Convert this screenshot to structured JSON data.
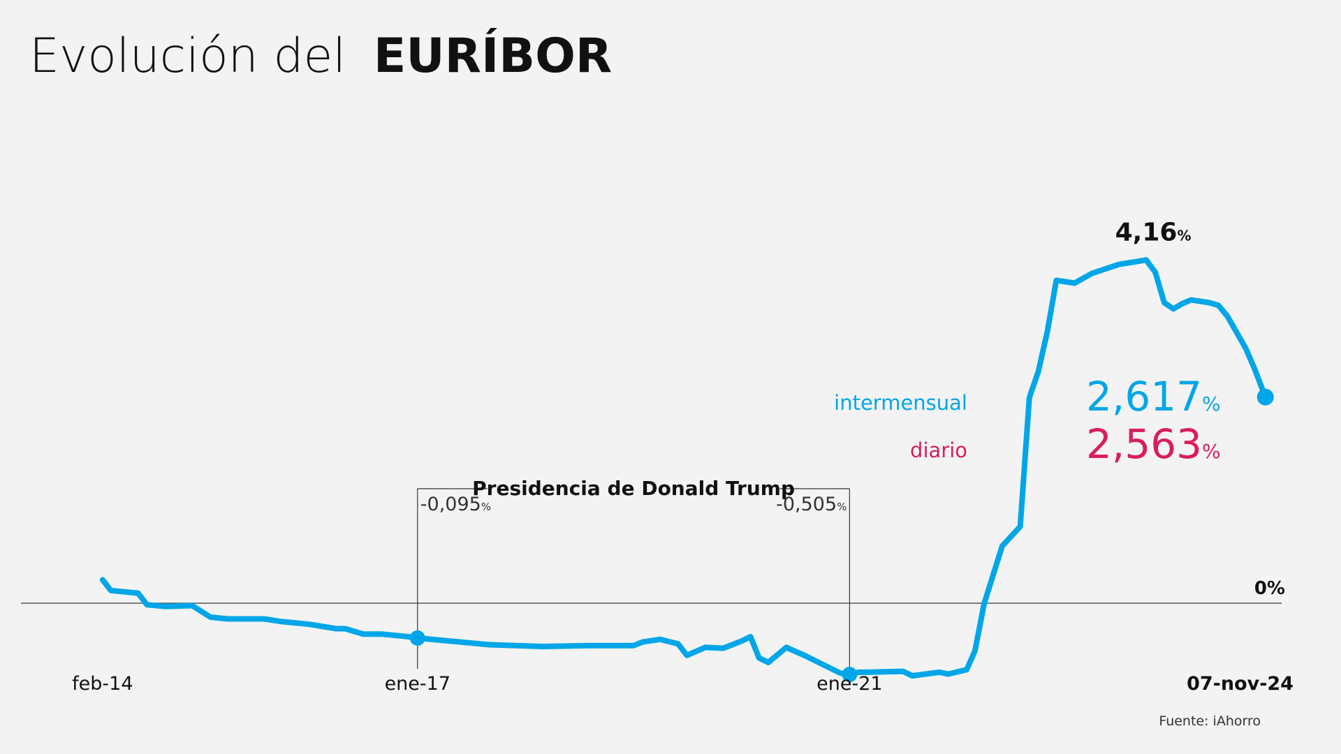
{
  "title_prefix": "Evolución del",
  "title_bold": "EURÍBOR",
  "source": "Fuente: iAhorro",
  "colors": {
    "background": "#f3f3f3",
    "intermensual": "#00a6e8",
    "diario": "#d81e5b",
    "text": "#111111"
  },
  "chart_data": {
    "type": "line",
    "series": [
      {
        "name": "intermensual",
        "x": [
          "2014-02-01",
          "2014-03-01",
          "2014-06-01",
          "2014-07-01",
          "2014-09-01",
          "2014-12-01",
          "2015-02-01",
          "2015-04-01",
          "2015-06-01",
          "2015-08-01",
          "2015-10-01",
          "2016-01-01",
          "2016-04-01",
          "2016-05-01",
          "2016-07-01",
          "2016-09-01",
          "2016-12-01",
          "2017-01-01",
          "2017-09-01",
          "2018-03-01",
          "2018-08-01",
          "2019-01-01",
          "2019-02-01",
          "2019-04-01",
          "2019-06-01",
          "2019-07-01",
          "2019-09-01",
          "2019-11-01",
          "2020-01-01",
          "2020-02-01",
          "2020-03-01",
          "2020-04-01",
          "2020-06-01",
          "2020-08-01",
          "2020-12-01",
          "2021-01-01",
          "2021-02-01",
          "2021-03-01",
          "2021-07-01",
          "2021-08-01",
          "2021-11-01",
          "2021-12-01",
          "2022-02-01",
          "2022-03-01",
          "2022-04-01",
          "2022-06-01",
          "2022-08-01",
          "2022-09-01",
          "2022-10-01",
          "2022-11-01",
          "2022-12-01",
          "2023-02-01",
          "2023-04-01",
          "2023-07-01",
          "2023-10-01",
          "2023-11-01",
          "2023-12-01",
          "2024-01-01",
          "2024-02-01",
          "2024-03-01",
          "2024-05-01",
          "2024-06-01",
          "2024-07-01",
          "2024-09-01",
          "2024-10-01",
          "2024-11-07"
        ],
        "values": [
          0.56,
          0.44,
          0.41,
          0.28,
          0.26,
          0.27,
          0.14,
          0.12,
          0.12,
          0.12,
          0.09,
          0.06,
          0.01,
          0.01,
          -0.05,
          -0.05,
          -0.08,
          -0.095,
          -0.17,
          -0.19,
          -0.18,
          -0.18,
          -0.14,
          -0.11,
          -0.16,
          -0.29,
          -0.2,
          -0.21,
          -0.13,
          -0.08,
          -0.32,
          -0.37,
          -0.2,
          -0.29,
          -0.49,
          -0.505,
          -0.48,
          -0.48,
          -0.47,
          -0.52,
          -0.48,
          -0.5,
          -0.45,
          -0.24,
          0.29,
          0.94,
          1.16,
          2.61,
          2.9,
          3.36,
          3.93,
          3.9,
          4.01,
          4.11,
          4.16,
          4.02,
          3.68,
          3.61,
          3.67,
          3.71,
          3.68,
          3.65,
          3.53,
          3.17,
          2.94,
          2.617
        ]
      }
    ],
    "x_ticks": [
      {
        "x": "2014-02-01",
        "label": "feb-14"
      },
      {
        "x": "2017-01-01",
        "label": "ene-17"
      },
      {
        "x": "2021-01-01",
        "label": "ene-21"
      },
      {
        "x": "2024-11-07",
        "label": "07-nov-24"
      }
    ],
    "zero_label": "0%",
    "peak": {
      "x": "2023-10-01",
      "value": "4,16",
      "unit": "%"
    },
    "annotation": {
      "label": "Presidencia de Donald Trump",
      "start": {
        "x": "2017-01-01",
        "value": "-0,095",
        "unit": "%"
      },
      "end": {
        "x": "2021-01-01",
        "value": "-0,505",
        "unit": "%"
      }
    },
    "current": {
      "intermensual": {
        "label": "intermensual",
        "value": "2,617",
        "unit": "%"
      },
      "diario": {
        "label": "diario",
        "value": "2,563",
        "unit": "%"
      }
    },
    "xlim": [
      "2013-05-01",
      "2025-01-01"
    ],
    "ylim": [
      -0.85,
      5.2
    ]
  }
}
